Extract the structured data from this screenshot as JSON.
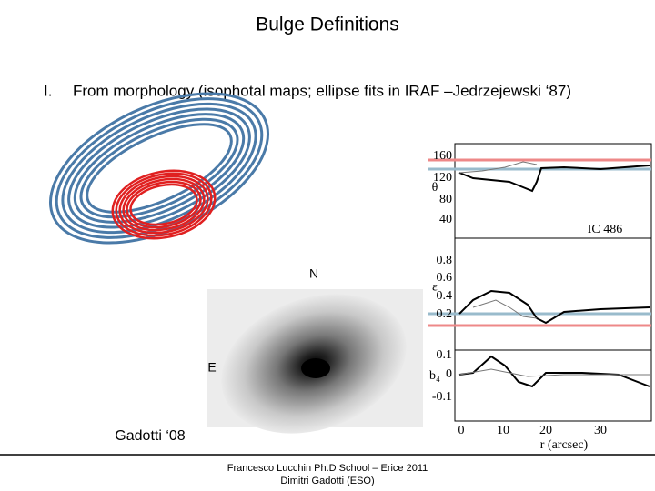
{
  "slide": {
    "title": "Bulge Definitions",
    "item": {
      "marker": "I.",
      "text": "From morphology (isophotal maps; ellipse fits in IRAF –Jedrzejewski ‘87)"
    },
    "image": {
      "north": "N",
      "east": "E",
      "credit": "Gadotti ‘08"
    },
    "profile_plot": {
      "object": "IC 486",
      "x_label": "r (arcsec)",
      "x_ticks": [
        "0",
        "10",
        "20",
        "30"
      ],
      "panels": [
        {
          "label": "θ",
          "ticks": [
            "160",
            "120",
            "80",
            "40"
          ]
        },
        {
          "label": "ε",
          "ticks": [
            "0.8",
            "0.6",
            "0.4",
            "0.2"
          ]
        },
        {
          "label": "b₄",
          "ticks": [
            "0.1",
            "0",
            "-0.1"
          ]
        }
      ]
    },
    "footer": [
      "Francesco Lucchin Ph.D School – Erice 2011",
      "Dimitri Gadotti (ESO)"
    ]
  }
}
